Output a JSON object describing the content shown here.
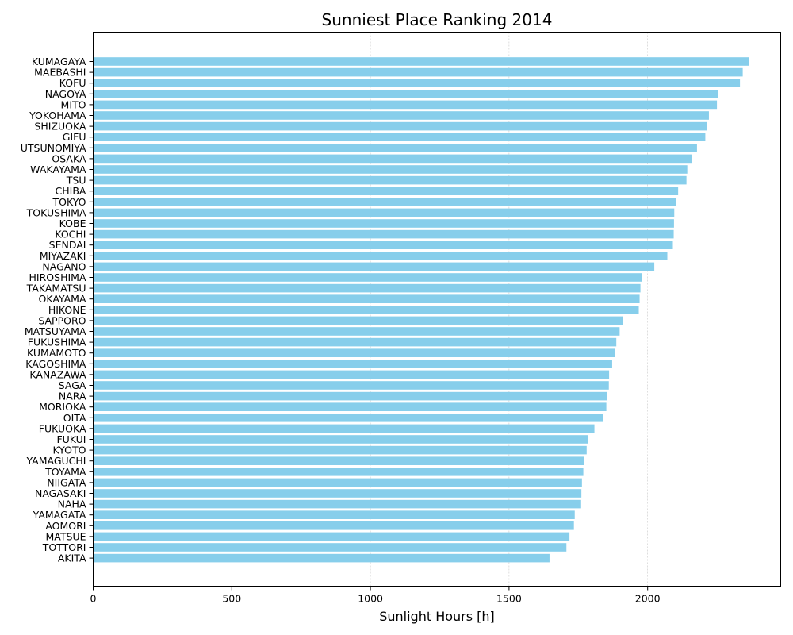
{
  "chart_data": {
    "type": "bar",
    "orientation": "horizontal",
    "title": "Sunniest Place Ranking 2014",
    "xlabel": "Sunlight Hours [h]",
    "ylabel": "",
    "xlim": [
      0,
      2480
    ],
    "xticks": [
      0,
      500,
      1000,
      1500,
      2000
    ],
    "grid": "x-dashed",
    "bar_color": "#87CEEB",
    "categories": [
      "KUMAGAYA",
      "MAEBASHI",
      "KOFU",
      "NAGOYA",
      "MITO",
      "YOKOHAMA",
      "SHIZUOKA",
      "GIFU",
      "UTSUNOMIYA",
      "OSAKA",
      "WAKAYAMA",
      "TSU",
      "CHIBA",
      "TOKYO",
      "TOKUSHIMA",
      "KOBE",
      "KOCHI",
      "SENDAI",
      "MIYAZAKI",
      "NAGANO",
      "HIROSHIMA",
      "TAKAMATSU",
      "OKAYAMA",
      "HIKONE",
      "SAPPORO",
      "MATSUYAMA",
      "FUKUSHIMA",
      "KUMAMOTO",
      "KAGOSHIMA",
      "KANAZAWA",
      "SAGA",
      "NARA",
      "MORIOKA",
      "OITA",
      "FUKUOKA",
      "FUKUI",
      "KYOTO",
      "YAMAGUCHI",
      "TOYAMA",
      "NIIGATA",
      "NAGASAKI",
      "NAHA",
      "YAMAGATA",
      "AOMORI",
      "MATSUE",
      "TOTTORI",
      "AKITA"
    ],
    "values": [
      2365,
      2343,
      2333,
      2254,
      2250,
      2221,
      2214,
      2208,
      2178,
      2161,
      2143,
      2140,
      2110,
      2102,
      2096,
      2095,
      2094,
      2091,
      2071,
      2024,
      1978,
      1974,
      1971,
      1968,
      1910,
      1899,
      1887,
      1881,
      1872,
      1861,
      1860,
      1853,
      1851,
      1840,
      1808,
      1785,
      1780,
      1772,
      1768,
      1763,
      1761,
      1760,
      1737,
      1734,
      1718,
      1707,
      1646
    ]
  }
}
